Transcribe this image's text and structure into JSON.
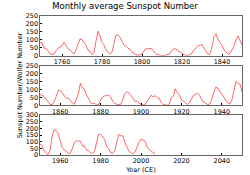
{
  "chart_data": [
    {
      "type": "line",
      "title": "Monthly average Sunspot Number",
      "color": "#ff0000",
      "grid": false,
      "xlim": [
        1749,
        1850
      ],
      "xticks": [
        1760,
        1780,
        1800,
        1820,
        1840
      ],
      "ylim": [
        0,
        250
      ],
      "yticks": [
        0,
        50,
        100,
        150,
        200,
        250
      ],
      "x": [
        1749,
        1750,
        1751,
        1752,
        1753,
        1754,
        1755,
        1756,
        1757,
        1758,
        1759,
        1760,
        1761,
        1762,
        1763,
        1764,
        1765,
        1766,
        1767,
        1768,
        1769,
        1770,
        1771,
        1772,
        1773,
        1774,
        1775,
        1776,
        1777,
        1778,
        1779,
        1780,
        1781,
        1782,
        1783,
        1784,
        1785,
        1786,
        1787,
        1788,
        1789,
        1790,
        1791,
        1792,
        1793,
        1794,
        1795,
        1796,
        1797,
        1798,
        1799,
        1800,
        1801,
        1802,
        1803,
        1804,
        1805,
        1806,
        1807,
        1808,
        1809,
        1810,
        1811,
        1812,
        1813,
        1814,
        1815,
        1816,
        1817,
        1818,
        1819,
        1820,
        1821,
        1822,
        1823,
        1824,
        1825,
        1826,
        1827,
        1828,
        1829,
        1830,
        1831,
        1832,
        1833,
        1834,
        1835,
        1836,
        1837,
        1838,
        1839,
        1840,
        1841,
        1842,
        1843,
        1844,
        1845,
        1846,
        1847,
        1848,
        1849,
        1850
      ],
      "values": [
        80.9,
        83.4,
        47.7,
        47.8,
        30.7,
        12.2,
        9.6,
        10.2,
        32.4,
        47.6,
        54.0,
        62.9,
        85.9,
        61.2,
        45.1,
        36.4,
        20.9,
        11.4,
        37.8,
        69.8,
        106.1,
        100.8,
        81.6,
        66.5,
        34.8,
        30.6,
        7.0,
        19.8,
        92.5,
        154.4,
        125.9,
        84.8,
        68.1,
        38.5,
        22.8,
        10.2,
        24.1,
        82.9,
        132.0,
        130.9,
        118.1,
        89.9,
        66.6,
        60.0,
        46.9,
        41.0,
        21.3,
        16.0,
        6.4,
        4.1,
        6.8,
        14.5,
        34.0,
        45.0,
        43.1,
        47.5,
        42.2,
        28.1,
        10.1,
        8.1,
        2.5,
        0.0,
        1.4,
        5.0,
        12.2,
        13.9,
        35.4,
        45.8,
        41.1,
        30.1,
        23.9,
        15.6,
        6.6,
        4.0,
        1.8,
        8.5,
        16.6,
        36.3,
        49.6,
        64.2,
        67.0,
        70.9,
        47.8,
        27.5,
        8.5,
        13.2,
        56.9,
        121.5,
        138.3,
        103.2,
        85.7,
        64.6,
        36.7,
        24.2,
        10.7,
        15.0,
        40.1,
        61.5,
        98.5,
        124.7,
        96.3,
        66.6
      ]
    },
    {
      "type": "line",
      "y_label": "Sunspot Number/Wolfer Number",
      "color": "#ff0000",
      "grid": false,
      "xlim": [
        1850,
        1950
      ],
      "xticks": [
        1860,
        1880,
        1900,
        1920,
        1940
      ],
      "ylim": [
        0,
        250
      ],
      "yticks": [
        0,
        50,
        100,
        150,
        200,
        250
      ],
      "x": [
        1850,
        1851,
        1852,
        1853,
        1854,
        1855,
        1856,
        1857,
        1858,
        1859,
        1860,
        1861,
        1862,
        1863,
        1864,
        1865,
        1866,
        1867,
        1868,
        1869,
        1870,
        1871,
        1872,
        1873,
        1874,
        1875,
        1876,
        1877,
        1878,
        1879,
        1880,
        1881,
        1882,
        1883,
        1884,
        1885,
        1886,
        1887,
        1888,
        1889,
        1890,
        1891,
        1892,
        1893,
        1894,
        1895,
        1896,
        1897,
        1898,
        1899,
        1900,
        1901,
        1902,
        1903,
        1904,
        1905,
        1906,
        1907,
        1908,
        1909,
        1910,
        1911,
        1912,
        1913,
        1914,
        1915,
        1916,
        1917,
        1918,
        1919,
        1920,
        1921,
        1922,
        1923,
        1924,
        1925,
        1926,
        1927,
        1928,
        1929,
        1930,
        1931,
        1932,
        1933,
        1934,
        1935,
        1936,
        1937,
        1938,
        1939,
        1940,
        1941,
        1942,
        1943,
        1944,
        1945,
        1946,
        1947,
        1948,
        1949,
        1950
      ],
      "values": [
        66.6,
        64.5,
        54.1,
        39.0,
        20.6,
        6.7,
        4.3,
        22.7,
        54.8,
        93.8,
        95.8,
        77.2,
        59.1,
        44.0,
        47.0,
        30.5,
        16.3,
        7.3,
        37.6,
        74.0,
        139.0,
        111.2,
        101.6,
        66.2,
        44.7,
        17.0,
        11.3,
        12.4,
        3.4,
        6.0,
        32.3,
        54.3,
        59.7,
        63.7,
        63.5,
        52.2,
        25.4,
        13.1,
        6.8,
        6.3,
        7.1,
        35.6,
        73.0,
        85.1,
        78.0,
        64.0,
        41.8,
        26.2,
        26.7,
        12.1,
        9.5,
        2.7,
        5.0,
        24.4,
        42.0,
        63.5,
        53.8,
        62.0,
        48.5,
        43.9,
        18.6,
        5.7,
        3.6,
        1.4,
        9.6,
        47.4,
        57.1,
        103.9,
        80.6,
        63.6,
        37.6,
        26.1,
        14.2,
        5.8,
        16.7,
        44.3,
        63.9,
        69.0,
        77.8,
        64.9,
        35.7,
        21.2,
        11.1,
        5.7,
        8.7,
        36.1,
        79.7,
        114.4,
        109.6,
        88.8,
        67.8,
        47.5,
        30.6,
        16.3,
        9.6,
        33.2,
        92.6,
        151.6,
        136.3,
        134.7,
        83.9
      ]
    },
    {
      "type": "line",
      "x_label": "Year (CE)",
      "color": "#ff0000",
      "grid": false,
      "xlim": [
        1950,
        2050
      ],
      "xticks": [
        1960,
        1980,
        2000,
        2020,
        2040
      ],
      "ylim": [
        0,
        300
      ],
      "yticks": [
        0,
        50,
        100,
        150,
        200,
        250,
        300
      ],
      "x": [
        1950,
        1951,
        1952,
        1953,
        1954,
        1955,
        1956,
        1957,
        1958,
        1959,
        1960,
        1961,
        1962,
        1963,
        1964,
        1965,
        1966,
        1967,
        1968,
        1969,
        1970,
        1971,
        1972,
        1973,
        1974,
        1975,
        1976,
        1977,
        1978,
        1979,
        1980,
        1981,
        1982,
        1983,
        1984,
        1985,
        1986,
        1987,
        1988,
        1989,
        1990,
        1991,
        1992,
        1993,
        1994,
        1995,
        1996,
        1997,
        1998,
        1999,
        2000,
        2001,
        2002,
        2003,
        2004,
        2005,
        2006,
        2007
      ],
      "values": [
        83.9,
        69.4,
        31.5,
        13.9,
        4.4,
        38.0,
        141.7,
        190.2,
        184.8,
        159.0,
        112.3,
        53.9,
        37.6,
        27.9,
        10.2,
        15.1,
        47.0,
        93.8,
        105.9,
        105.5,
        104.5,
        66.6,
        68.9,
        38.0,
        34.5,
        15.5,
        12.6,
        27.5,
        92.5,
        155.4,
        154.6,
        140.4,
        115.9,
        66.6,
        45.9,
        17.9,
        13.4,
        29.4,
        100.2,
        157.6,
        142.6,
        145.7,
        94.3,
        54.6,
        29.9,
        17.5,
        8.6,
        21.5,
        64.3,
        93.3,
        119.6,
        111.0,
        104.0,
        63.7,
        40.4,
        29.8,
        15.2,
        7.5
      ]
    }
  ]
}
